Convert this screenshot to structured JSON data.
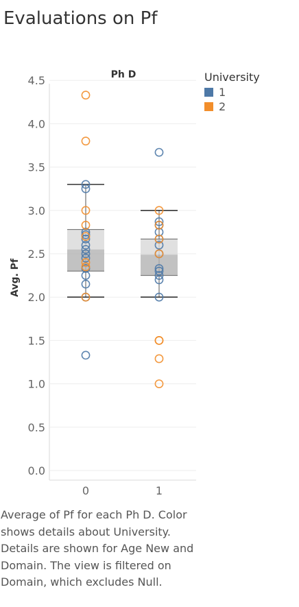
{
  "title": "Evaluations on Pf",
  "legend": {
    "title": "University",
    "items": [
      {
        "label": "1",
        "color": "#4e79a7"
      },
      {
        "label": "2",
        "color": "#f28e2b"
      }
    ]
  },
  "caption": "Average of Pf for each Ph D. Color shows details about University.  Details are shown for Age New and Domain. The view is filtered on Domain, which excludes Null.",
  "chart_data": {
    "type": "scatter",
    "title": "Evaluations on Pf",
    "column_header": "Ph D",
    "xlabel": "",
    "ylabel": "Avg. Pf",
    "categories": [
      "0",
      "1"
    ],
    "y_ticks": [
      "0.0",
      "0.5",
      "1.0",
      "1.5",
      "2.0",
      "2.5",
      "3.0",
      "3.5",
      "4.0",
      "4.5"
    ],
    "ylim": [
      -0.1,
      4.6
    ],
    "grid": true,
    "legend_position": "top-right",
    "series": [
      {
        "name": "1",
        "color": "#4e79a7",
        "points": [
          {
            "x": "0",
            "y": 3.3
          },
          {
            "x": "0",
            "y": 3.25
          },
          {
            "x": "0",
            "y": 2.75
          },
          {
            "x": "0",
            "y": 2.72
          },
          {
            "x": "0",
            "y": 2.67
          },
          {
            "x": "0",
            "y": 2.6
          },
          {
            "x": "0",
            "y": 2.55
          },
          {
            "x": "0",
            "y": 2.5
          },
          {
            "x": "0",
            "y": 2.45
          },
          {
            "x": "0",
            "y": 2.33
          },
          {
            "x": "0",
            "y": 2.25
          },
          {
            "x": "0",
            "y": 2.15
          },
          {
            "x": "0",
            "y": 2.0
          },
          {
            "x": "0",
            "y": 1.33
          },
          {
            "x": "1",
            "y": 3.67
          },
          {
            "x": "1",
            "y": 2.87
          },
          {
            "x": "1",
            "y": 2.83
          },
          {
            "x": "1",
            "y": 2.75
          },
          {
            "x": "1",
            "y": 2.67
          },
          {
            "x": "1",
            "y": 2.6
          },
          {
            "x": "1",
            "y": 2.5
          },
          {
            "x": "1",
            "y": 2.33
          },
          {
            "x": "1",
            "y": 2.3
          },
          {
            "x": "1",
            "y": 2.25
          },
          {
            "x": "1",
            "y": 2.2
          },
          {
            "x": "1",
            "y": 2.0
          }
        ]
      },
      {
        "name": "2",
        "color": "#f28e2b",
        "points": [
          {
            "x": "0",
            "y": 4.33
          },
          {
            "x": "0",
            "y": 3.8
          },
          {
            "x": "0",
            "y": 3.0
          },
          {
            "x": "0",
            "y": 2.83
          },
          {
            "x": "0",
            "y": 2.7
          },
          {
            "x": "0",
            "y": 2.4
          },
          {
            "x": "0",
            "y": 2.35
          },
          {
            "x": "0",
            "y": 2.0
          },
          {
            "x": "1",
            "y": 3.0
          },
          {
            "x": "1",
            "y": 2.83
          },
          {
            "x": "1",
            "y": 2.67
          },
          {
            "x": "1",
            "y": 2.5
          },
          {
            "x": "1",
            "y": 1.5
          },
          {
            "x": "1",
            "y": 1.5
          },
          {
            "x": "1",
            "y": 1.29
          },
          {
            "x": "1",
            "y": 1.0
          }
        ]
      }
    ],
    "boxplots": [
      {
        "category": "0",
        "lower_whisker": 2.0,
        "q1": 2.3,
        "median": 2.55,
        "q3": 2.78,
        "upper_whisker": 3.3
      },
      {
        "category": "1",
        "lower_whisker": 2.0,
        "q1": 2.25,
        "median": 2.49,
        "q3": 2.67,
        "upper_whisker": 3.0
      }
    ]
  }
}
